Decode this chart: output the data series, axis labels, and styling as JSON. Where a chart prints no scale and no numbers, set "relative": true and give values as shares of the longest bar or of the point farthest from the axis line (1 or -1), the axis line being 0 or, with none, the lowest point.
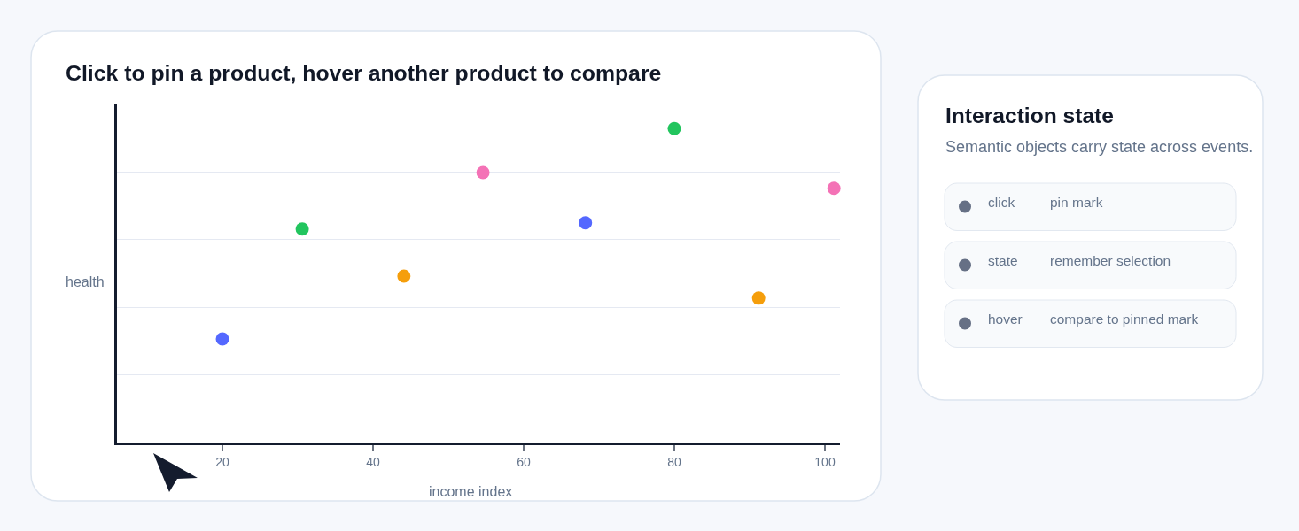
{
  "chart_data": [
    {
      "type": "scatter",
      "title": "Click to pin a product, hover another product to compare",
      "xlabel": "income index",
      "ylabel": "health",
      "x": [
        20,
        30.6,
        44.1,
        54.6,
        68.2,
        80,
        91.2,
        101.2
      ],
      "values": [
        0.33,
        0.68,
        0.53,
        0.86,
        0.7,
        1,
        0.46,
        0.81
      ],
      "colors": [
        "#5468ff",
        "#22c55e",
        "#f59e0b",
        "#f472b6",
        "#5468ff",
        "#22c55e",
        "#f59e0b",
        "#f472b6"
      ],
      "relative": true,
      "xlim": [
        6,
        102
      ],
      "xticks": [
        20,
        40,
        60,
        80,
        100
      ],
      "grid": "y",
      "marker": "circle"
    },
    {
      "type": "other",
      "title": "Interaction state",
      "subtitle": "Semantic objects carry state across events.",
      "annotations": [
        "click",
        "pin mark",
        "state",
        "remember selection",
        "hover",
        "compare to pinned mark"
      ]
    }
  ]
}
